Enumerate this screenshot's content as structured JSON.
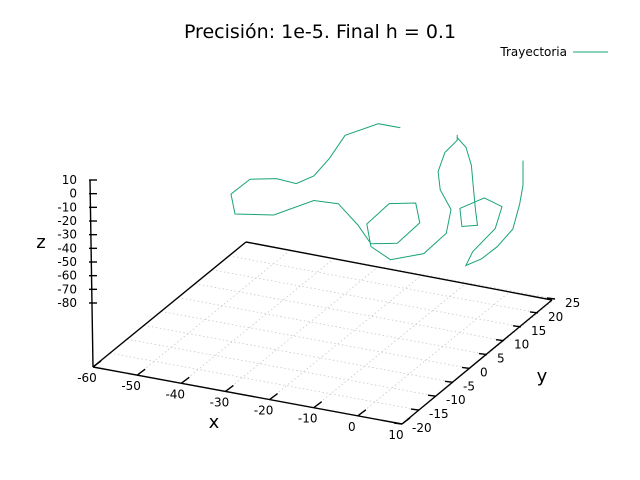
{
  "chart_data": {
    "type": "line",
    "title": "Precisión: 1e-5. Final h = 0.1",
    "xlabel": "x",
    "ylabel": "y",
    "zlabel": "z",
    "xlim": [
      -60,
      10
    ],
    "ylim": [
      -20,
      25
    ],
    "zlim": [
      -80,
      10
    ],
    "x_ticks": [
      "-60",
      "-50",
      "-40",
      "-30",
      "-20",
      "-10",
      "0",
      "10"
    ],
    "y_ticks": [
      "-20",
      "-15",
      "-10",
      "-5",
      "0",
      "5",
      "10",
      "15",
      "20",
      "25"
    ],
    "z_ticks": [
      "10",
      "0",
      "-10",
      "-20",
      "-30",
      "-40",
      "-50",
      "-60",
      "-70",
      "-80"
    ],
    "grid": true,
    "legend_position": "top-right",
    "series": [
      {
        "name": "Trayectoria",
        "color": "#1aa37a",
        "values": [
          [
            -15,
            12,
            10
          ],
          [
            -20,
            12,
            10
          ],
          [
            -26,
            10,
            2
          ],
          [
            -28,
            8,
            -12
          ],
          [
            -30,
            6,
            -22
          ],
          [
            -34,
            6,
            -30
          ],
          [
            -40,
            8,
            -34
          ],
          [
            -46,
            8,
            -38
          ],
          [
            -48,
            5,
            -44
          ],
          [
            -44,
            1,
            -48
          ],
          [
            -36,
            2,
            -46
          ],
          [
            -30,
            6,
            -40
          ],
          [
            -26,
            8,
            -44
          ],
          [
            -20,
            6,
            -52
          ],
          [
            -14,
            2,
            -54
          ],
          [
            -8,
            2,
            -50
          ],
          [
            -6,
            6,
            -42
          ],
          [
            -10,
            10,
            -38
          ],
          [
            -16,
            10,
            -42
          ],
          [
            -18,
            6,
            -50
          ],
          [
            -14,
            2,
            -56
          ],
          [
            -8,
            0,
            -58
          ],
          [
            -2,
            2,
            -54
          ],
          [
            0,
            6,
            -46
          ],
          [
            -2,
            10,
            -38
          ],
          [
            -6,
            12,
            -30
          ],
          [
            -8,
            14,
            -22
          ],
          [
            -8,
            16,
            -12
          ],
          [
            -6,
            17,
            -4
          ],
          [
            -6,
            17,
            0
          ],
          [
            -6,
            17,
            -2
          ],
          [
            -4,
            17,
            -8
          ],
          [
            -2,
            16,
            -18
          ],
          [
            0,
            14,
            -30
          ],
          [
            2,
            12,
            -40
          ],
          [
            4,
            10,
            -46
          ],
          [
            2,
            8,
            -44
          ],
          [
            0,
            10,
            -36
          ],
          [
            4,
            12,
            -30
          ],
          [
            8,
            12,
            -34
          ],
          [
            8,
            10,
            -46
          ],
          [
            6,
            6,
            -56
          ],
          [
            6,
            4,
            -62
          ],
          [
            8,
            6,
            -60
          ],
          [
            10,
            8,
            -54
          ],
          [
            12,
            10,
            -44
          ],
          [
            12,
            12,
            -30
          ],
          [
            12,
            13,
            -18
          ],
          [
            12,
            13,
            -6
          ],
          [
            12,
            13,
            0
          ]
        ]
      }
    ]
  }
}
